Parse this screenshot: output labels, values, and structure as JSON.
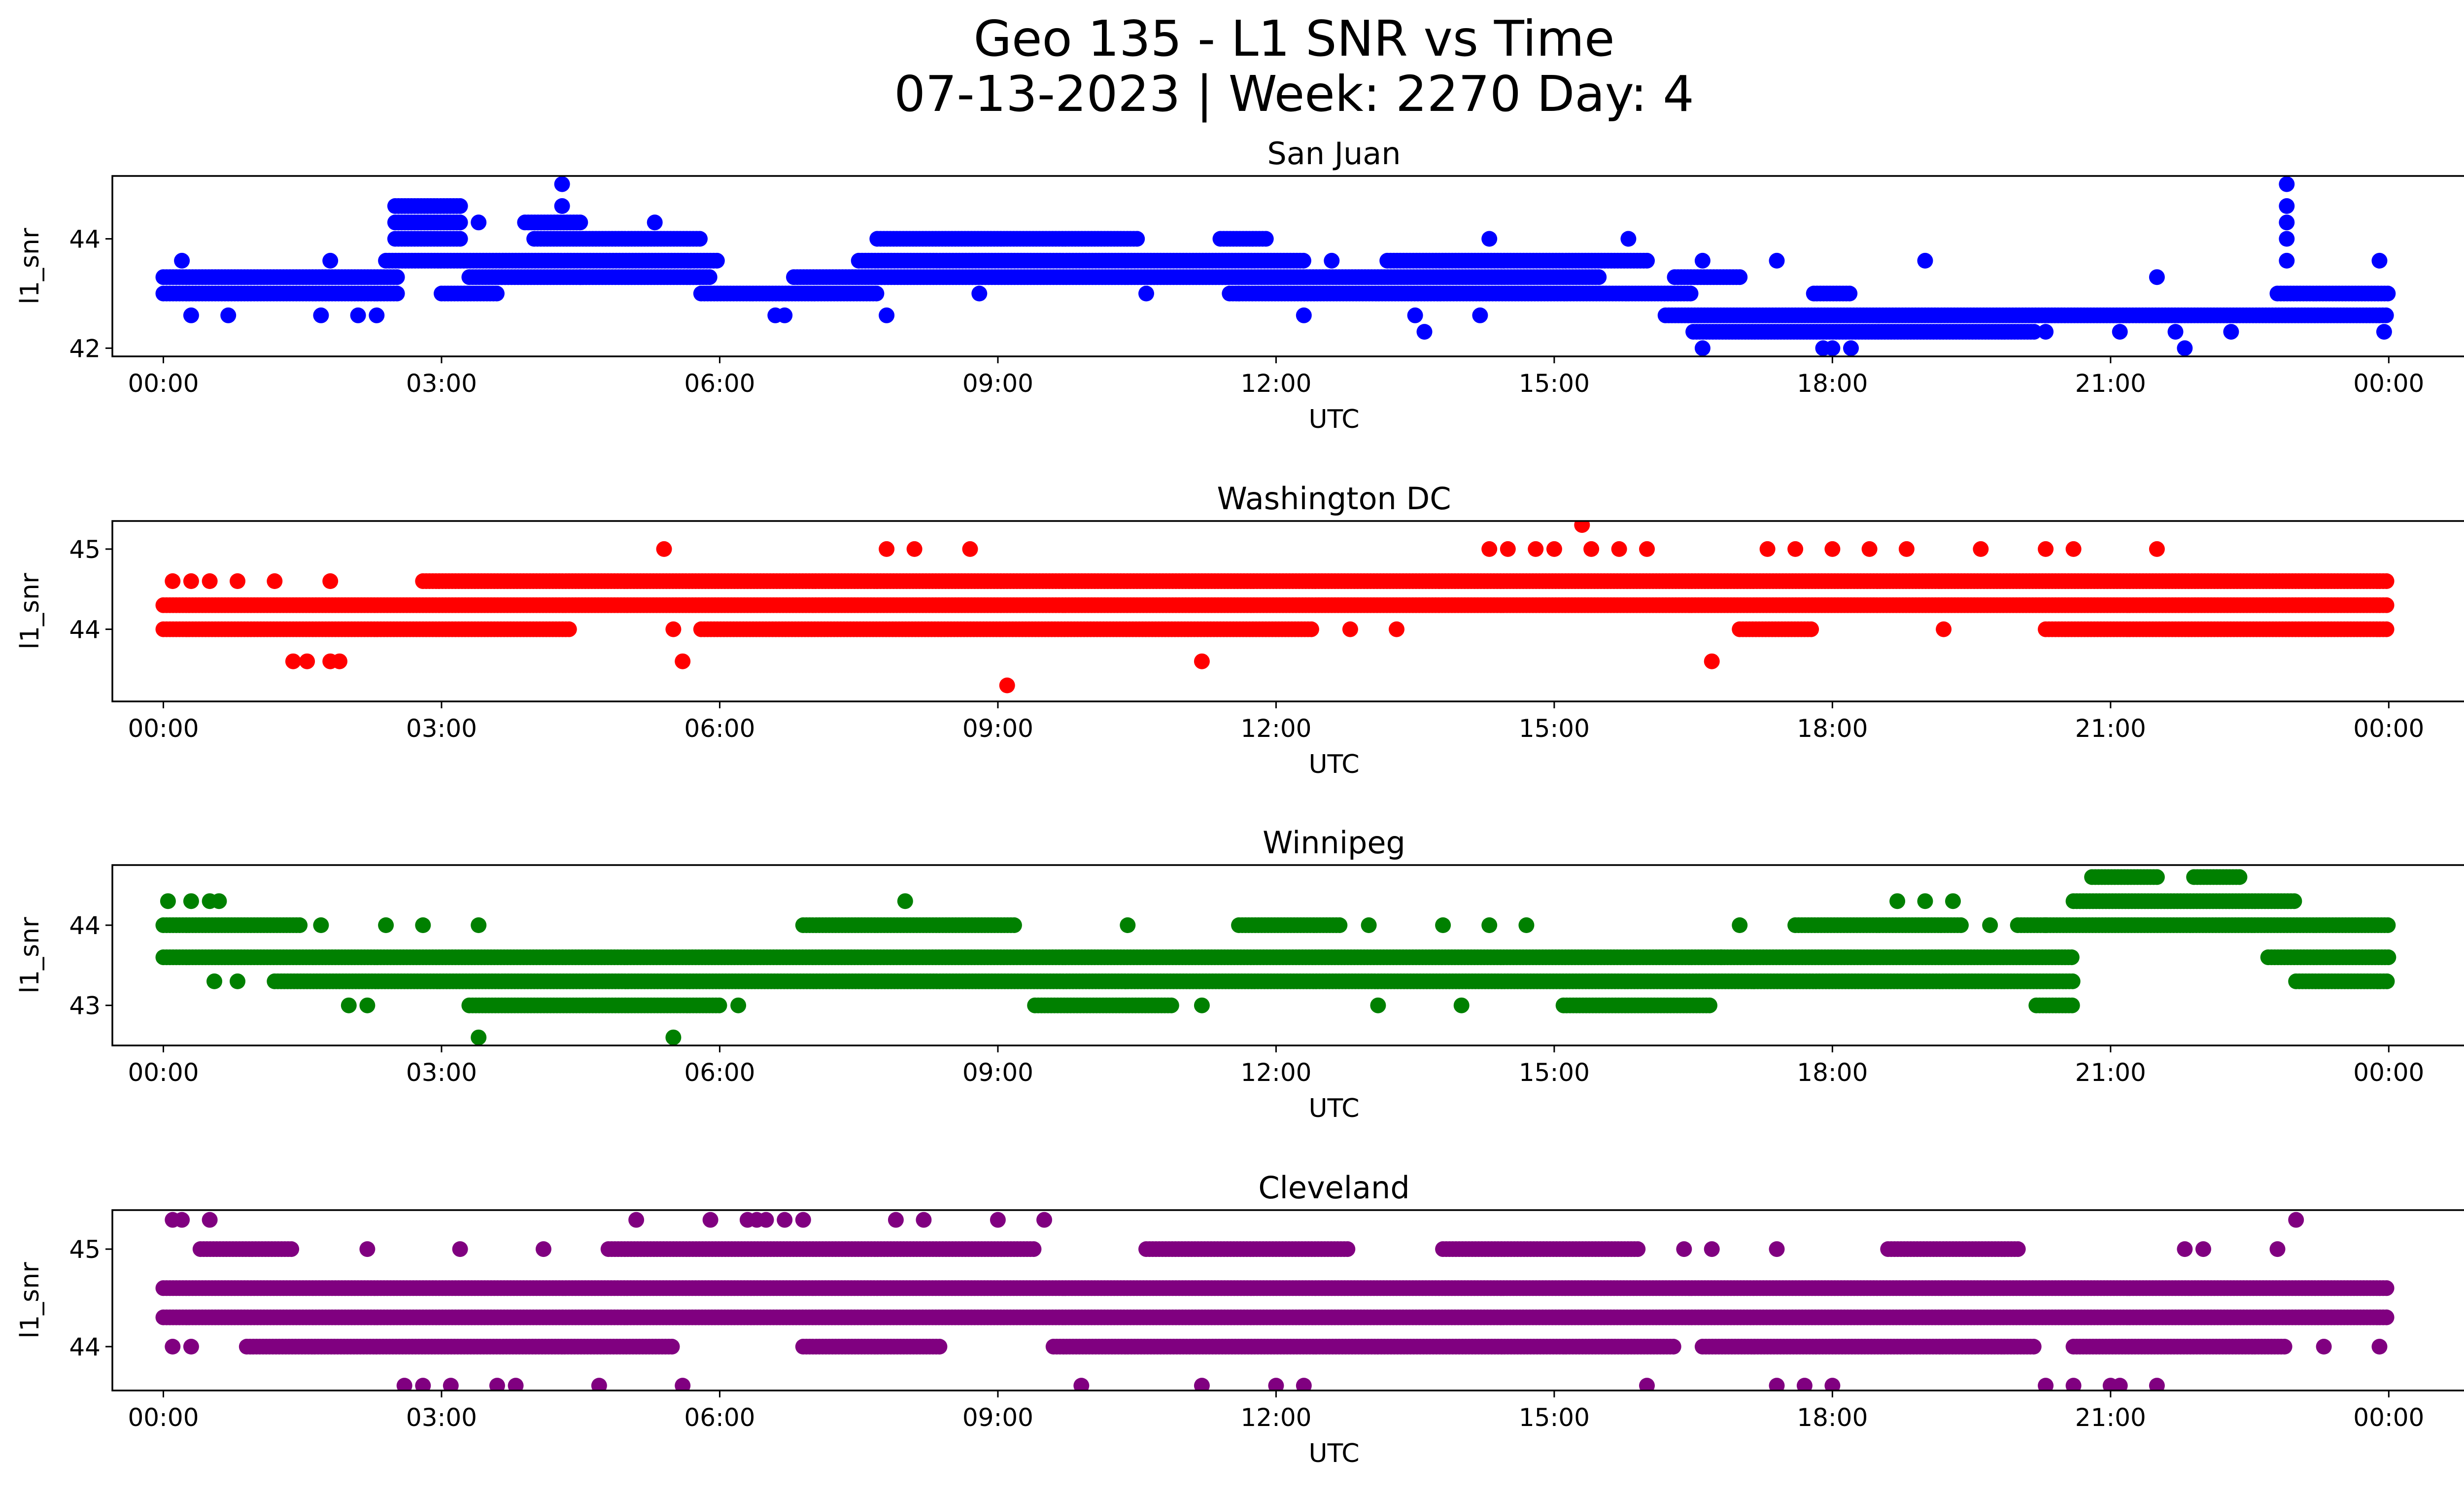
{
  "figure": {
    "title_line1": "Geo 135 - L1 SNR vs Time",
    "title_line2": "07-13-2023 | Week: 2270 Day: 4"
  },
  "chart_data": [
    {
      "type": "scatter",
      "title": "San Juan",
      "xlabel": "UTC",
      "ylabel": "l1_snr",
      "color": "#0000ff",
      "xticks": [
        "00:00",
        "03:00",
        "06:00",
        "09:00",
        "12:00",
        "15:00",
        "18:00",
        "21:00",
        "00:00"
      ],
      "xlim_hours": [
        -0.55,
        25.8
      ],
      "yticks": [
        42,
        44
      ],
      "ylim": [
        41.85,
        45.15
      ],
      "series": [
        {
          "level": 43.3,
          "ranges": [
            [
              0,
              2.55
            ],
            [
              3.3,
              5.9
            ],
            [
              6.8,
              15.5
            ],
            [
              16.3,
              17.0
            ]
          ],
          "scatter_density": 0
        },
        {
          "level": 43.0,
          "ranges": [
            [
              0,
              2.55
            ],
            [
              3.0,
              3.6
            ],
            [
              5.8,
              7.7
            ],
            [
              11.5,
              16.5
            ],
            [
              17.8,
              18.2
            ],
            [
              22.8,
              24.0
            ]
          ],
          "scatter_density": 0
        },
        {
          "level": 43.6,
          "ranges": [
            [
              2.4,
              6.0
            ],
            [
              7.5,
              12.3
            ],
            [
              13.2,
              16.0
            ]
          ],
          "scatter_density": 0
        },
        {
          "level": 44.0,
          "ranges": [
            [
              2.5,
              3.2
            ],
            [
              4.0,
              5.8
            ],
            [
              7.7,
              10.5
            ],
            [
              11.4,
              11.9
            ]
          ],
          "scatter_density": 0
        },
        {
          "level": 42.6,
          "ranges": [
            [
              16.2,
              24.0
            ]
          ],
          "scatter_density": 0
        },
        {
          "level": 42.3,
          "ranges": [
            [
              16.5,
              20.2
            ]
          ],
          "scatter_density": 0
        },
        {
          "level": 44.3,
          "ranges": [
            [
              2.5,
              3.2
            ],
            [
              3.9,
              4.5
            ]
          ],
          "scatter_density": 0
        },
        {
          "level": 44.6,
          "ranges": [
            [
              2.5,
              3.2
            ]
          ],
          "scatter_density": 0
        }
      ],
      "outliers": [
        [
          0.2,
          43.6
        ],
        [
          0.3,
          42.6
        ],
        [
          0.7,
          42.6
        ],
        [
          1.8,
          43.6
        ],
        [
          1.7,
          42.6
        ],
        [
          2.1,
          42.6
        ],
        [
          2.3,
          42.6
        ],
        [
          3.4,
          44.3
        ],
        [
          4.3,
          45.0
        ],
        [
          4.3,
          44.6
        ],
        [
          4.5,
          43.3
        ],
        [
          5.3,
          44.3
        ],
        [
          6.6,
          42.6
        ],
        [
          6.7,
          42.6
        ],
        [
          7.8,
          42.6
        ],
        [
          8.8,
          43.0
        ],
        [
          10.6,
          43.0
        ],
        [
          11.6,
          43.0
        ],
        [
          12.3,
          42.6
        ],
        [
          12.6,
          43.6
        ],
        [
          13.6,
          42.3
        ],
        [
          13.5,
          42.6
        ],
        [
          14.3,
          44.0
        ],
        [
          14.2,
          42.6
        ],
        [
          15.8,
          44.0
        ],
        [
          16.6,
          42.0
        ],
        [
          16.6,
          43.6
        ],
        [
          17.4,
          43.6
        ],
        [
          17.9,
          42.0
        ],
        [
          18.0,
          42.0
        ],
        [
          18.2,
          42.0
        ],
        [
          19.0,
          43.6
        ],
        [
          20.3,
          42.3
        ],
        [
          21.1,
          42.3
        ],
        [
          21.5,
          43.3
        ],
        [
          21.7,
          42.3
        ],
        [
          21.8,
          42.0
        ],
        [
          22.3,
          42.3
        ],
        [
          22.9,
          45.0
        ],
        [
          22.9,
          44.6
        ],
        [
          22.9,
          44.3
        ],
        [
          22.9,
          44.0
        ],
        [
          22.9,
          43.6
        ],
        [
          23.9,
          43.6
        ],
        [
          23.95,
          42.3
        ]
      ]
    },
    {
      "type": "scatter",
      "title": "Washington DC",
      "xlabel": "UTC",
      "ylabel": "l1_snr",
      "color": "#ff0000",
      "xticks": [
        "00:00",
        "03:00",
        "06:00",
        "09:00",
        "12:00",
        "15:00",
        "18:00",
        "21:00",
        "00:00"
      ],
      "xlim_hours": [
        -0.55,
        25.8
      ],
      "yticks": [
        44,
        45
      ],
      "ylim": [
        43.1,
        45.35
      ],
      "series": [
        {
          "level": 44.3,
          "ranges": [
            [
              0,
              24.0
            ]
          ],
          "scatter_density": 0
        },
        {
          "level": 44.6,
          "ranges": [
            [
              2.8,
              24.0
            ]
          ],
          "scatter_density": 0
        },
        {
          "level": 44.0,
          "ranges": [
            [
              0,
              4.4
            ],
            [
              5.8,
              12.4
            ],
            [
              17.0,
              17.8
            ],
            [
              20.3,
              24.0
            ]
          ],
          "scatter_density": 0
        }
      ],
      "outliers": [
        [
          0.1,
          44.6
        ],
        [
          0.3,
          44.6
        ],
        [
          0.5,
          44.6
        ],
        [
          0.8,
          44.6
        ],
        [
          1.2,
          44.6
        ],
        [
          1.8,
          44.6
        ],
        [
          1.4,
          43.6
        ],
        [
          1.55,
          43.6
        ],
        [
          1.8,
          43.6
        ],
        [
          1.9,
          43.6
        ],
        [
          5.4,
          45.0
        ],
        [
          5.5,
          44.0
        ],
        [
          5.6,
          43.6
        ],
        [
          7.8,
          45.0
        ],
        [
          8.1,
          45.0
        ],
        [
          8.7,
          45.0
        ],
        [
          9.1,
          43.3
        ],
        [
          11.2,
          43.6
        ],
        [
          12.8,
          44.0
        ],
        [
          13.3,
          44.0
        ],
        [
          14.3,
          45.0
        ],
        [
          14.5,
          45.0
        ],
        [
          14.8,
          45.0
        ],
        [
          15.0,
          45.0
        ],
        [
          15.3,
          45.3
        ],
        [
          15.4,
          45.0
        ],
        [
          15.7,
          45.0
        ],
        [
          16.0,
          45.0
        ],
        [
          16.7,
          43.6
        ],
        [
          17.3,
          45.0
        ],
        [
          17.6,
          45.0
        ],
        [
          18.0,
          45.0
        ],
        [
          18.4,
          45.0
        ],
        [
          18.8,
          45.0
        ],
        [
          19.2,
          44.0
        ],
        [
          19.6,
          45.0
        ],
        [
          20.3,
          45.0
        ],
        [
          20.6,
          45.0
        ],
        [
          21.5,
          45.0
        ]
      ]
    },
    {
      "type": "scatter",
      "title": "Winnipeg",
      "xlabel": "UTC",
      "ylabel": "l1_snr",
      "color": "#008000",
      "xticks": [
        "00:00",
        "03:00",
        "06:00",
        "09:00",
        "12:00",
        "15:00",
        "18:00",
        "21:00",
        "00:00"
      ],
      "xlim_hours": [
        -0.55,
        25.8
      ],
      "yticks": [
        43,
        44
      ],
      "ylim": [
        42.5,
        44.75
      ],
      "series": [
        {
          "level": 43.6,
          "ranges": [
            [
              0,
              20.6
            ],
            [
              22.7,
              24.0
            ]
          ],
          "scatter_density": 0
        },
        {
          "level": 43.3,
          "ranges": [
            [
              1.2,
              20.6
            ],
            [
              23.0,
              24.0
            ]
          ],
          "scatter_density": 0
        },
        {
          "level": 44.0,
          "ranges": [
            [
              0,
              1.5
            ],
            [
              6.9,
              9.2
            ],
            [
              11.6,
              12.7
            ],
            [
              17.6,
              19.4
            ],
            [
              20.0,
              24.0
            ]
          ],
          "scatter_density": 0
        },
        {
          "level": 43.0,
          "ranges": [
            [
              3.3,
              6.0
            ],
            [
              9.4,
              10.9
            ],
            [
              15.1,
              16.7
            ],
            [
              20.2,
              20.6
            ]
          ],
          "scatter_density": 0
        },
        {
          "level": 44.3,
          "ranges": [
            [
              20.6,
              23.0
            ]
          ],
          "scatter_density": 0
        },
        {
          "level": 44.6,
          "ranges": [
            [
              20.8,
              21.5
            ],
            [
              21.9,
              22.4
            ]
          ],
          "scatter_density": 0
        }
      ],
      "outliers": [
        [
          0.05,
          44.3
        ],
        [
          0.3,
          44.3
        ],
        [
          0.5,
          44.3
        ],
        [
          0.6,
          44.3
        ],
        [
          0.55,
          43.3
        ],
        [
          0.8,
          43.3
        ],
        [
          1.7,
          44.0
        ],
        [
          2.0,
          43.0
        ],
        [
          2.2,
          43.0
        ],
        [
          2.4,
          44.0
        ],
        [
          2.8,
          44.0
        ],
        [
          3.4,
          44.0
        ],
        [
          3.4,
          42.6
        ],
        [
          5.5,
          42.6
        ],
        [
          6.2,
          43.0
        ],
        [
          8.0,
          44.3
        ],
        [
          10.4,
          44.0
        ],
        [
          11.2,
          43.0
        ],
        [
          13.0,
          44.0
        ],
        [
          13.1,
          43.0
        ],
        [
          13.8,
          44.0
        ],
        [
          14.0,
          43.0
        ],
        [
          14.3,
          44.0
        ],
        [
          14.7,
          44.0
        ],
        [
          16.8,
          43.6
        ],
        [
          17.0,
          44.0
        ],
        [
          18.7,
          44.3
        ],
        [
          19.0,
          44.3
        ],
        [
          19.3,
          44.3
        ],
        [
          19.7,
          44.0
        ],
        [
          20.3,
          44.0
        ]
      ]
    },
    {
      "type": "scatter",
      "title": "Cleveland",
      "xlabel": "UTC",
      "ylabel": "l1_snr",
      "color": "#800080",
      "xticks": [
        "00:00",
        "03:00",
        "06:00",
        "09:00",
        "12:00",
        "15:00",
        "18:00",
        "21:00",
        "00:00"
      ],
      "xlim_hours": [
        -0.55,
        25.8
      ],
      "yticks": [
        44,
        45
      ],
      "ylim": [
        43.55,
        45.4
      ],
      "series": [
        {
          "level": 44.6,
          "ranges": [
            [
              0,
              24.0
            ]
          ],
          "scatter_density": 0
        },
        {
          "level": 44.3,
          "ranges": [
            [
              0,
              24.0
            ]
          ],
          "scatter_density": 0
        },
        {
          "level": 44.0,
          "ranges": [
            [
              0.9,
              5.5
            ],
            [
              6.9,
              8.4
            ],
            [
              9.6,
              16.3
            ],
            [
              16.6,
              20.2
            ],
            [
              20.6,
              22.9
            ]
          ],
          "scatter_density": 0
        },
        {
          "level": 45.0,
          "ranges": [
            [
              0.4,
              1.4
            ],
            [
              4.8,
              9.4
            ],
            [
              10.6,
              12.8
            ],
            [
              13.8,
              15.9
            ],
            [
              18.6,
              20.0
            ]
          ],
          "scatter_density": 0
        }
      ],
      "outliers": [
        [
          0.1,
          45.3
        ],
        [
          0.2,
          45.3
        ],
        [
          0.5,
          45.3
        ],
        [
          0.1,
          44.0
        ],
        [
          0.3,
          44.0
        ],
        [
          2.2,
          45.0
        ],
        [
          2.6,
          43.6
        ],
        [
          2.8,
          43.6
        ],
        [
          3.1,
          43.6
        ],
        [
          3.2,
          45.0
        ],
        [
          3.6,
          43.6
        ],
        [
          3.8,
          43.6
        ],
        [
          4.1,
          45.0
        ],
        [
          4.7,
          43.6
        ],
        [
          5.1,
          45.3
        ],
        [
          5.6,
          43.6
        ],
        [
          5.9,
          45.3
        ],
        [
          6.3,
          45.3
        ],
        [
          6.4,
          45.3
        ],
        [
          6.5,
          45.3
        ],
        [
          6.7,
          45.3
        ],
        [
          6.9,
          45.3
        ],
        [
          7.9,
          45.3
        ],
        [
          8.2,
          45.3
        ],
        [
          9.0,
          45.3
        ],
        [
          9.5,
          45.3
        ],
        [
          9.9,
          43.6
        ],
        [
          11.2,
          43.6
        ],
        [
          12.0,
          43.6
        ],
        [
          12.3,
          43.6
        ],
        [
          16.0,
          43.6
        ],
        [
          16.4,
          45.0
        ],
        [
          16.7,
          45.0
        ],
        [
          17.4,
          45.0
        ],
        [
          17.4,
          43.6
        ],
        [
          17.7,
          43.6
        ],
        [
          18.0,
          43.6
        ],
        [
          20.3,
          43.6
        ],
        [
          20.6,
          43.6
        ],
        [
          21.0,
          43.6
        ],
        [
          21.1,
          43.6
        ],
        [
          21.5,
          43.6
        ],
        [
          21.8,
          45.0
        ],
        [
          22.0,
          45.0
        ],
        [
          23.0,
          45.3
        ],
        [
          22.8,
          45.0
        ],
        [
          23.3,
          44.0
        ],
        [
          23.9,
          44.0
        ]
      ]
    }
  ]
}
